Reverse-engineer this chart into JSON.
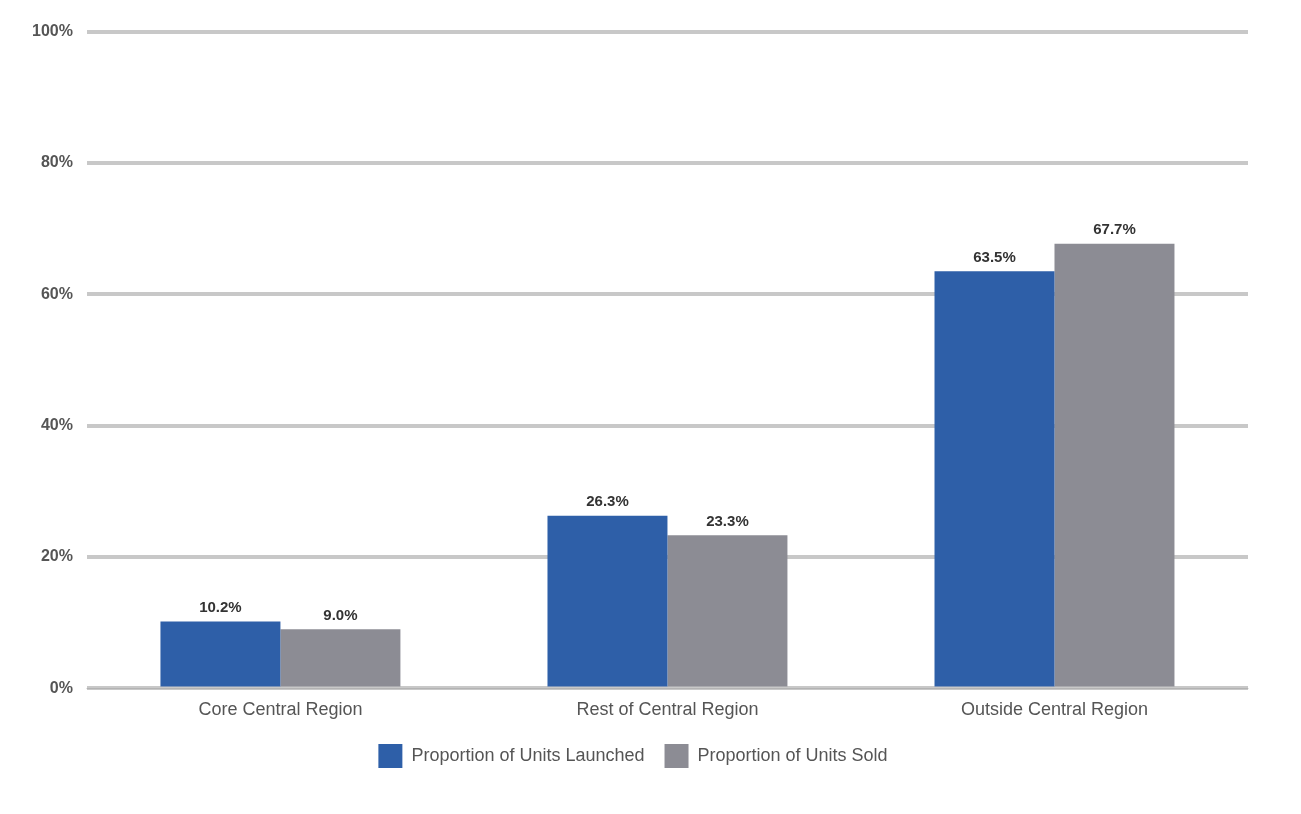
{
  "chart_data": {
    "type": "bar",
    "categories": [
      "Core Central Region",
      "Rest of Central Region",
      "Outside Central Region"
    ],
    "series": [
      {
        "name": "Proportion of Units Launched",
        "color": "#2e5fa8",
        "values": [
          10.2,
          26.3,
          63.5
        ],
        "value_labels": [
          "10.2%",
          "26.3%",
          "63.5%"
        ]
      },
      {
        "name": "Proportion of Units Sold",
        "color": "#8c8c94",
        "values": [
          9.0,
          23.3,
          67.7
        ],
        "value_labels": [
          "9.0%",
          "23.3%",
          "67.7%"
        ]
      }
    ],
    "ylim": [
      0,
      100
    ],
    "yticks": [
      {
        "value": 0,
        "label": "0%"
      },
      {
        "value": 20,
        "label": "20%"
      },
      {
        "value": 40,
        "label": "40%"
      },
      {
        "value": 60,
        "label": "60%"
      },
      {
        "value": 80,
        "label": "80%"
      },
      {
        "value": 100,
        "label": "100%"
      }
    ],
    "grid": "y",
    "legend": "bottom"
  }
}
